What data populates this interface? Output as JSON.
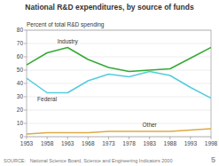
{
  "chart_data": {
    "type": "line",
    "title": "National R&D expenditures, by source of funds",
    "ylabel": "Percent of total R&D spending",
    "x": [
      1953,
      1958,
      1963,
      1968,
      1973,
      1978,
      1983,
      1988,
      1993,
      1998
    ],
    "series": [
      {
        "name": "Industry",
        "color": "#33aa33",
        "values": [
          54,
          63,
          67,
          58,
          52,
          49,
          50,
          51,
          59,
          67
        ]
      },
      {
        "name": "Federal",
        "color": "#55ccdd",
        "values": [
          44,
          33,
          33,
          42,
          47,
          45,
          49,
          46,
          37,
          29
        ]
      },
      {
        "name": "Other",
        "color": "#ddaa44",
        "values": [
          2,
          3,
          3,
          3,
          4,
          4,
          4,
          4,
          5,
          6
        ]
      }
    ],
    "xlim": [
      1953,
      1998
    ],
    "xticks": [
      1953,
      1958,
      1963,
      1968,
      1973,
      1978,
      1983,
      1988,
      1993,
      1998
    ],
    "ylim": [
      0,
      80
    ],
    "yticks": [
      0,
      10,
      20,
      30,
      40,
      50,
      60,
      70,
      80
    ],
    "grid": true,
    "annotations": [
      "SOURCE:   National Science Board, Science and Engineering Indicators 2000",
      "5"
    ]
  }
}
